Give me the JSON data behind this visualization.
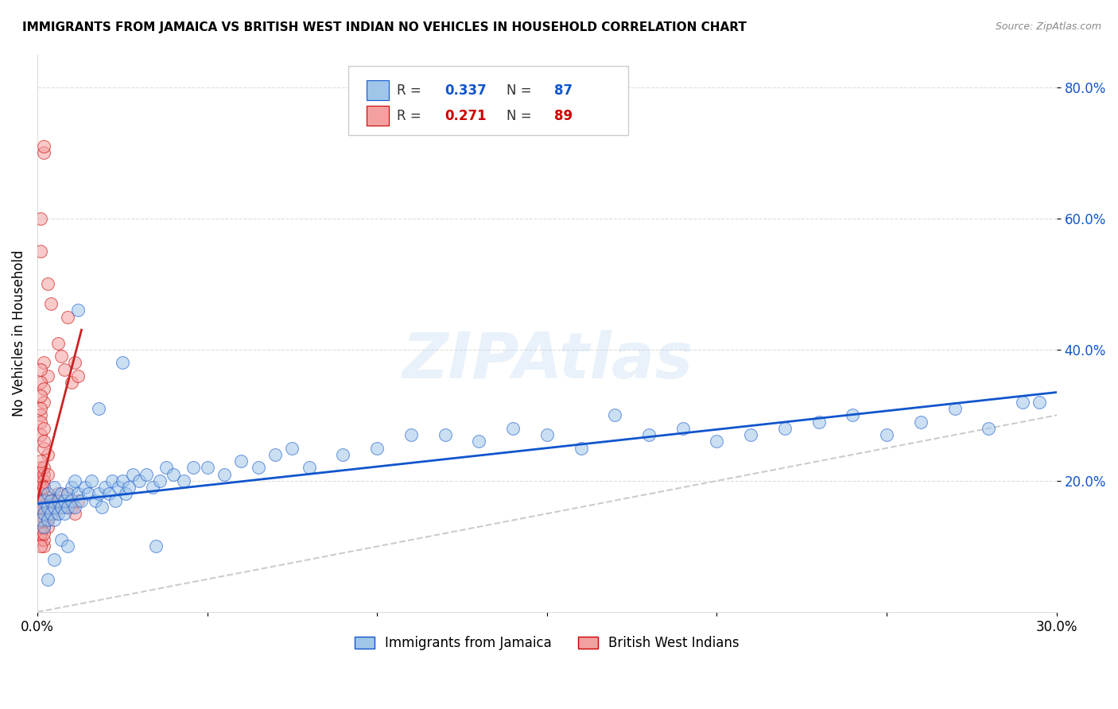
{
  "title": "IMMIGRANTS FROM JAMAICA VS BRITISH WEST INDIAN NO VEHICLES IN HOUSEHOLD CORRELATION CHART",
  "source": "Source: ZipAtlas.com",
  "ylabel": "No Vehicles in Household",
  "xlim": [
    0.0,
    0.3
  ],
  "ylim": [
    0.0,
    0.85
  ],
  "legend_r1_label": "R = ",
  "legend_r1_val": "0.337",
  "legend_n1_label": "N = ",
  "legend_n1_val": "87",
  "legend_r2_label": "R = ",
  "legend_r2_val": "0.271",
  "legend_n2_label": "N = ",
  "legend_n2_val": "89",
  "color_blue": "#9fc5e8",
  "color_pink": "#f4a0a0",
  "color_blue_dark": "#1155cc",
  "color_pink_dark": "#cc0000",
  "color_trendline_blue": "#1155cc",
  "color_trendline_pink": "#cc2222",
  "color_diagonal": "#cccccc",
  "color_grid": "#dddddd",
  "watermark": "ZIPAtlas",
  "jamaica_x": [
    0.001,
    0.001,
    0.002,
    0.002,
    0.002,
    0.003,
    0.003,
    0.003,
    0.004,
    0.004,
    0.005,
    0.005,
    0.005,
    0.006,
    0.006,
    0.007,
    0.007,
    0.008,
    0.008,
    0.009,
    0.009,
    0.01,
    0.01,
    0.011,
    0.011,
    0.012,
    0.013,
    0.014,
    0.015,
    0.016,
    0.017,
    0.018,
    0.019,
    0.02,
    0.021,
    0.022,
    0.023,
    0.024,
    0.025,
    0.026,
    0.027,
    0.028,
    0.03,
    0.032,
    0.034,
    0.036,
    0.038,
    0.04,
    0.043,
    0.046,
    0.05,
    0.055,
    0.06,
    0.065,
    0.07,
    0.075,
    0.08,
    0.09,
    0.1,
    0.11,
    0.12,
    0.13,
    0.14,
    0.15,
    0.16,
    0.17,
    0.18,
    0.19,
    0.2,
    0.21,
    0.22,
    0.23,
    0.24,
    0.25,
    0.26,
    0.27,
    0.28,
    0.29,
    0.295,
    0.005,
    0.003,
    0.007,
    0.009,
    0.012,
    0.018,
    0.025,
    0.035
  ],
  "jamaica_y": [
    0.16,
    0.14,
    0.17,
    0.15,
    0.13,
    0.18,
    0.14,
    0.16,
    0.15,
    0.17,
    0.16,
    0.19,
    0.14,
    0.17,
    0.15,
    0.18,
    0.16,
    0.17,
    0.15,
    0.18,
    0.16,
    0.19,
    0.17,
    0.2,
    0.16,
    0.18,
    0.17,
    0.19,
    0.18,
    0.2,
    0.17,
    0.18,
    0.16,
    0.19,
    0.18,
    0.2,
    0.17,
    0.19,
    0.2,
    0.18,
    0.19,
    0.21,
    0.2,
    0.21,
    0.19,
    0.2,
    0.22,
    0.21,
    0.2,
    0.22,
    0.22,
    0.21,
    0.23,
    0.22,
    0.24,
    0.25,
    0.22,
    0.24,
    0.25,
    0.27,
    0.27,
    0.26,
    0.28,
    0.27,
    0.25,
    0.3,
    0.27,
    0.28,
    0.26,
    0.27,
    0.28,
    0.29,
    0.3,
    0.27,
    0.29,
    0.31,
    0.28,
    0.32,
    0.32,
    0.08,
    0.05,
    0.11,
    0.1,
    0.46,
    0.31,
    0.38,
    0.1
  ],
  "bwi_x": [
    0.001,
    0.001,
    0.001,
    0.001,
    0.002,
    0.002,
    0.002,
    0.002,
    0.003,
    0.003,
    0.003,
    0.003,
    0.004,
    0.004,
    0.004,
    0.005,
    0.005,
    0.005,
    0.006,
    0.006,
    0.007,
    0.007,
    0.008,
    0.008,
    0.009,
    0.009,
    0.01,
    0.01,
    0.011,
    0.011,
    0.012,
    0.012,
    0.001,
    0.001,
    0.002,
    0.002,
    0.003,
    0.003,
    0.001,
    0.001,
    0.002,
    0.002,
    0.001,
    0.001,
    0.002,
    0.001,
    0.002,
    0.001,
    0.001,
    0.002,
    0.002,
    0.001,
    0.003,
    0.002,
    0.001,
    0.002,
    0.003,
    0.001,
    0.002,
    0.001,
    0.002,
    0.001,
    0.002,
    0.001,
    0.002,
    0.001,
    0.002,
    0.001,
    0.002,
    0.001,
    0.002,
    0.001,
    0.002,
    0.001,
    0.003,
    0.002,
    0.001,
    0.002,
    0.003,
    0.001,
    0.002,
    0.001,
    0.002,
    0.001,
    0.003,
    0.002,
    0.001,
    0.002,
    0.001
  ],
  "bwi_y": [
    0.55,
    0.6,
    0.15,
    0.16,
    0.7,
    0.71,
    0.16,
    0.17,
    0.5,
    0.14,
    0.18,
    0.15,
    0.47,
    0.16,
    0.17,
    0.16,
    0.17,
    0.15,
    0.41,
    0.18,
    0.39,
    0.17,
    0.37,
    0.16,
    0.45,
    0.18,
    0.35,
    0.16,
    0.38,
    0.15,
    0.17,
    0.36,
    0.2,
    0.22,
    0.21,
    0.38,
    0.24,
    0.36,
    0.27,
    0.3,
    0.25,
    0.32,
    0.35,
    0.37,
    0.34,
    0.33,
    0.26,
    0.29,
    0.31,
    0.28,
    0.19,
    0.18,
    0.17,
    0.2,
    0.19,
    0.22,
    0.21,
    0.23,
    0.16,
    0.17,
    0.15,
    0.18,
    0.14,
    0.16,
    0.19,
    0.13,
    0.15,
    0.17,
    0.14,
    0.16,
    0.15,
    0.12,
    0.13,
    0.11,
    0.14,
    0.1,
    0.16,
    0.15,
    0.13,
    0.17,
    0.14,
    0.12,
    0.16,
    0.13,
    0.15,
    0.11,
    0.14,
    0.12,
    0.1
  ]
}
